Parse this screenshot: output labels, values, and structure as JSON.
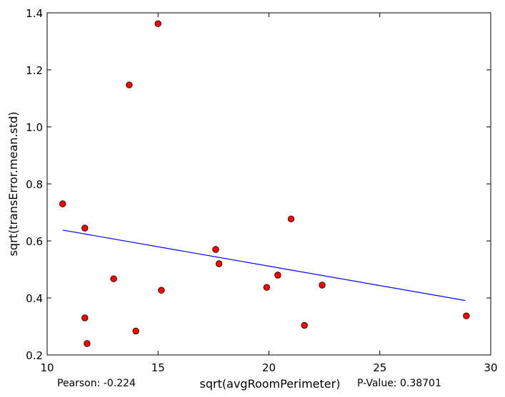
{
  "chart_data": {
    "type": "scatter",
    "title": "",
    "xlabel": "sqrt(avgRoomPerimeter)",
    "ylabel": "sqrt(transError.mean.std)",
    "xlim": [
      10,
      30
    ],
    "ylim": [
      0.2,
      1.4
    ],
    "xticks": [
      10,
      15,
      20,
      25,
      30
    ],
    "yticks": [
      0.2,
      0.4,
      0.6,
      0.8,
      1.0,
      1.2,
      1.4
    ],
    "xtick_labels": [
      "10",
      "15",
      "20",
      "25",
      "30"
    ],
    "ytick_labels": [
      "0.2",
      "0.4",
      "0.6",
      "0.8",
      "1.0",
      "1.2",
      "1.4"
    ],
    "grid": false,
    "points": [
      {
        "x": 10.7,
        "y": 0.73
      },
      {
        "x": 11.7,
        "y": 0.645
      },
      {
        "x": 11.7,
        "y": 0.33
      },
      {
        "x": 11.8,
        "y": 0.24
      },
      {
        "x": 13.0,
        "y": 0.467
      },
      {
        "x": 13.7,
        "y": 1.147
      },
      {
        "x": 14.0,
        "y": 0.284
      },
      {
        "x": 15.0,
        "y": 1.362
      },
      {
        "x": 15.15,
        "y": 0.427
      },
      {
        "x": 17.6,
        "y": 0.57
      },
      {
        "x": 17.75,
        "y": 0.52
      },
      {
        "x": 19.9,
        "y": 0.437
      },
      {
        "x": 20.4,
        "y": 0.48
      },
      {
        "x": 21.0,
        "y": 0.677
      },
      {
        "x": 21.6,
        "y": 0.304
      },
      {
        "x": 22.4,
        "y": 0.445
      },
      {
        "x": 28.9,
        "y": 0.337
      }
    ],
    "point_color": "#ff0000",
    "point_edge_color": "#000000",
    "fit_line": {
      "x": [
        10.7,
        28.85
      ],
      "y": [
        0.638,
        0.391
      ],
      "color": "#0000ff"
    },
    "annotations": {
      "pearson": "Pearson: -0.224",
      "p_value": "P-Value: 0.38701"
    }
  }
}
